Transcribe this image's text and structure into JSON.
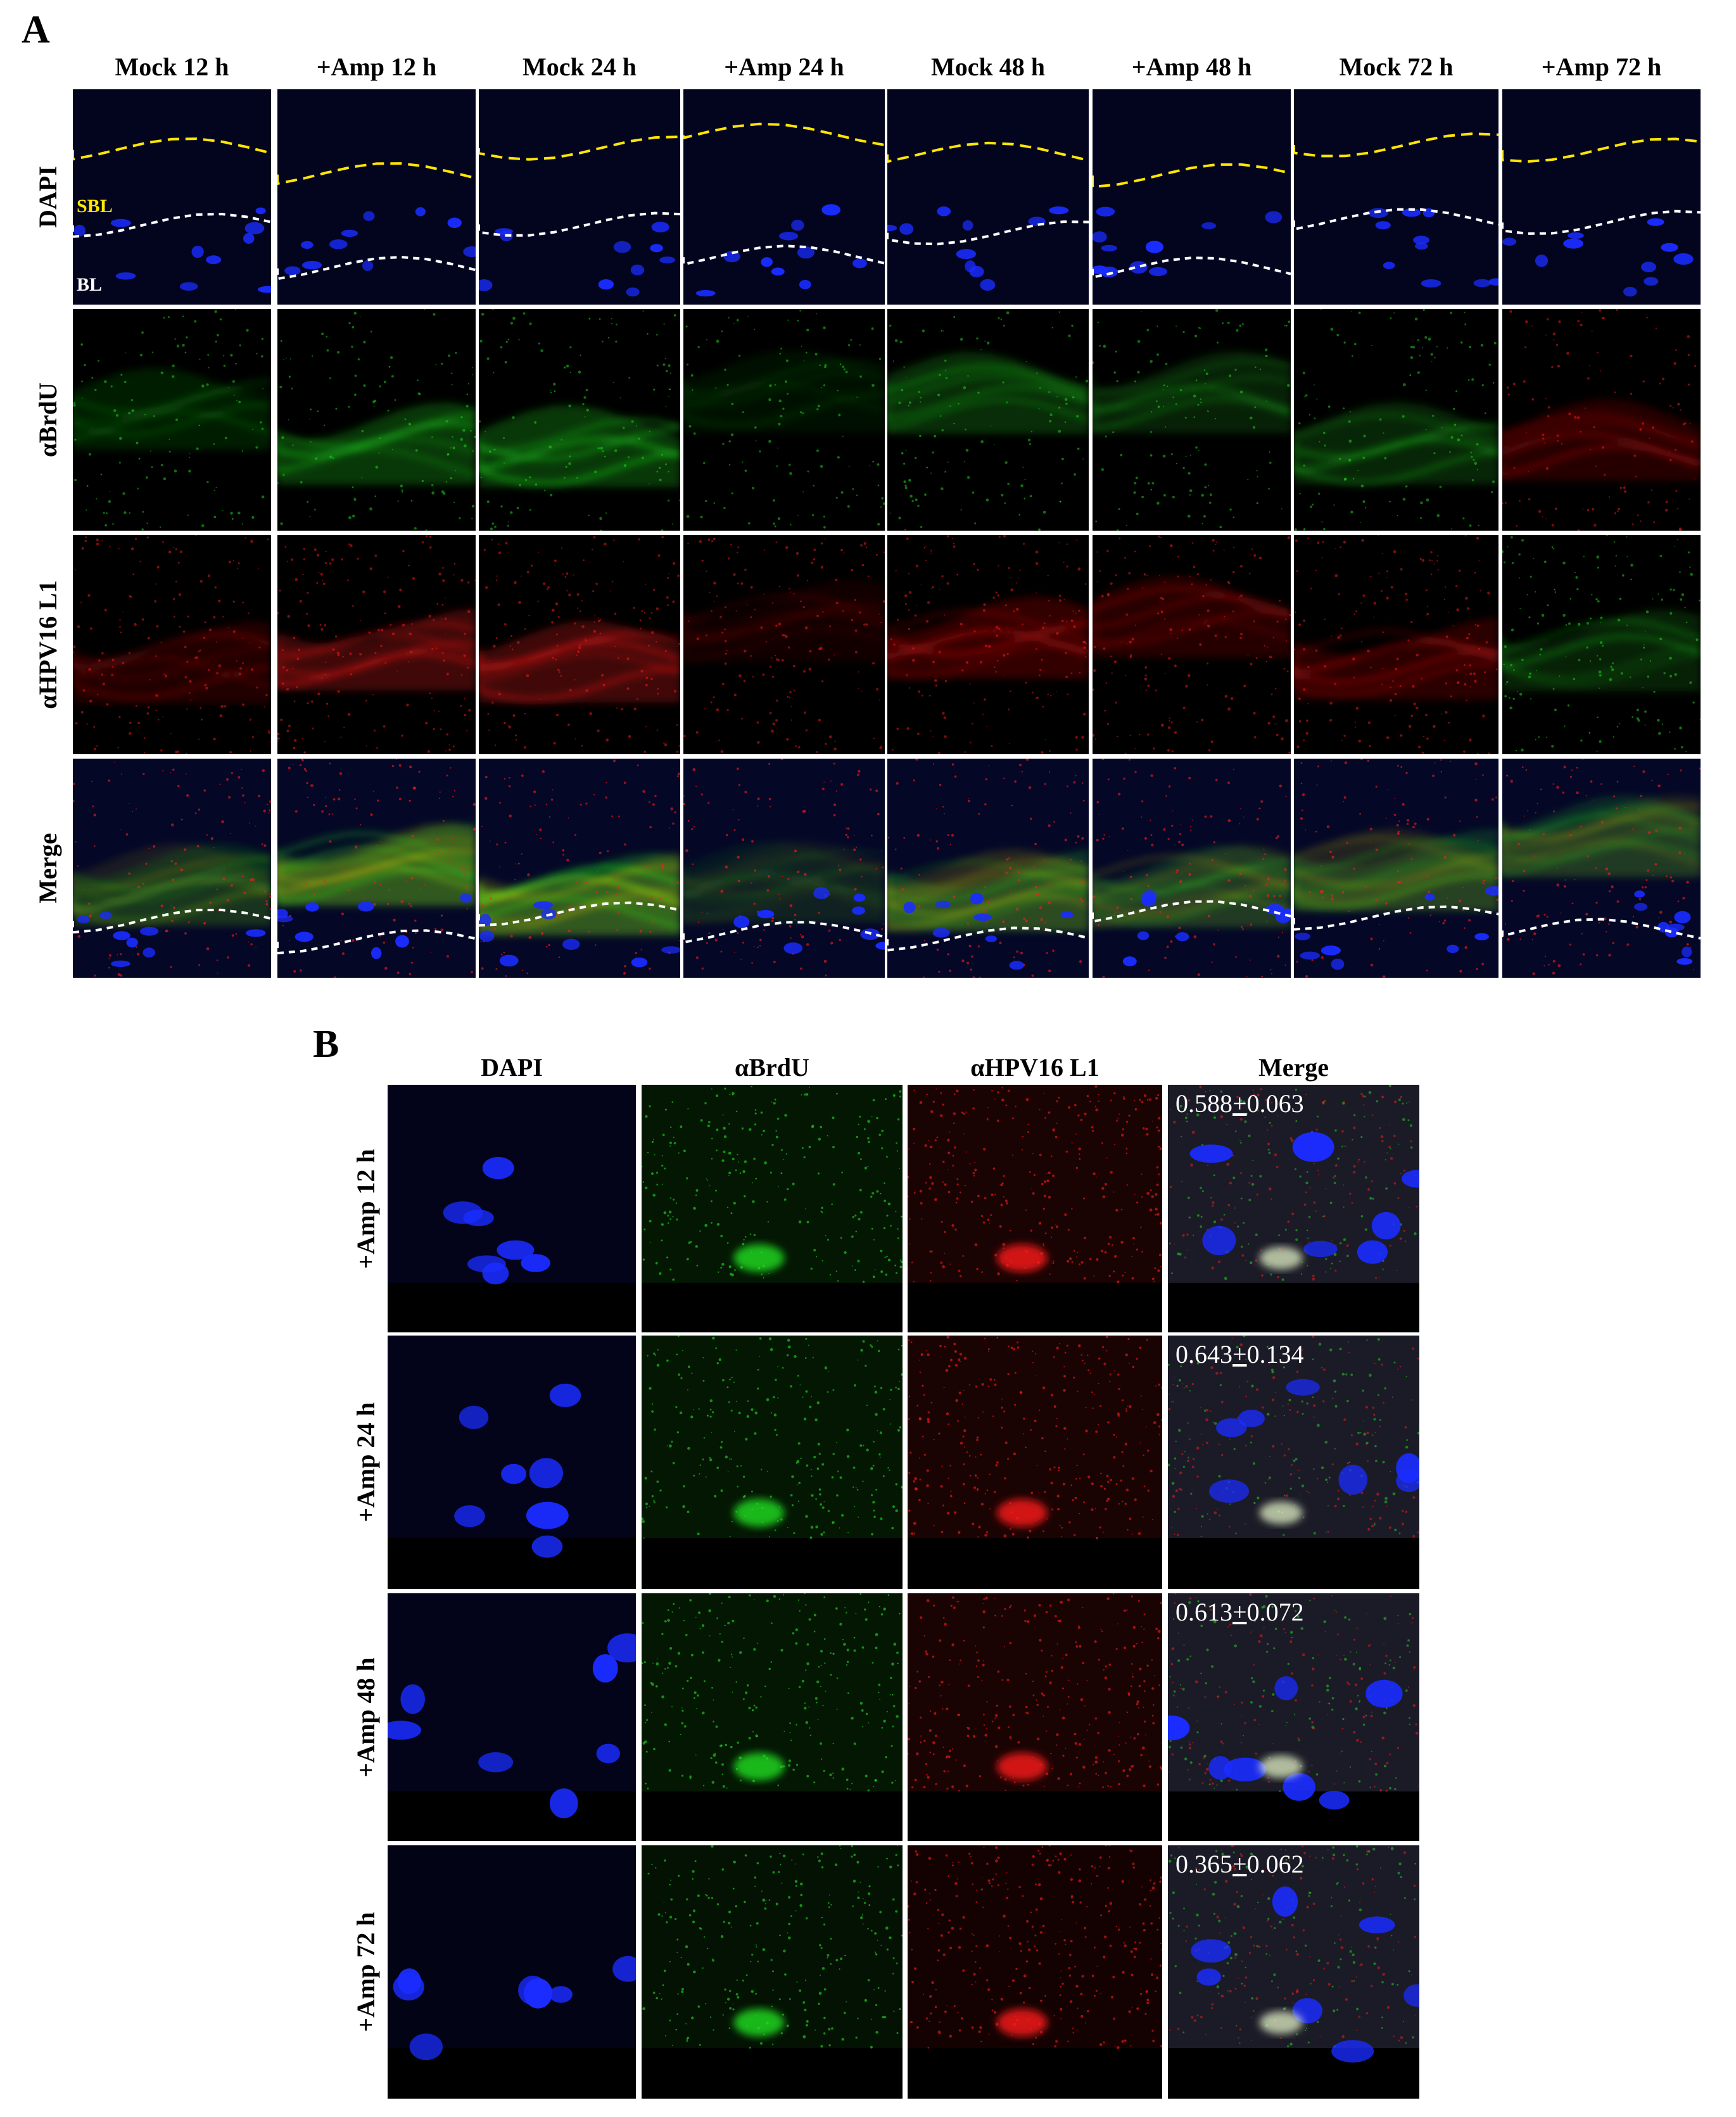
{
  "panel_a": {
    "letter": "A",
    "columns": [
      "Mock 12 h",
      "+Amp 12 h",
      "Mock 24 h",
      "+Amp 24 h",
      "Mock 48 h",
      "+Amp 48 h",
      "Mock 72 h",
      "+Amp 72 h"
    ],
    "rows": [
      "DAPI",
      "αBrdU",
      "αHPV16 L1",
      "Merge"
    ],
    "annotations": {
      "suprabasal": "SBL",
      "basal": "BL"
    }
  },
  "panel_b": {
    "letter": "B",
    "columns": [
      "DAPI",
      "αBrdU",
      "αHPV16 L1",
      "Merge"
    ],
    "rows": [
      {
        "label": "+Amp 12 h",
        "coloc_value": "0.588",
        "coloc_sd": "0.063"
      },
      {
        "label": "+Amp 24 h",
        "coloc_value": "0.643",
        "coloc_sd": "0.134"
      },
      {
        "label": "+Amp 48 h",
        "coloc_value": "0.613",
        "coloc_sd": "0.072"
      },
      {
        "label": "+Amp 72 h",
        "coloc_value": "0.365",
        "coloc_sd": "0.062"
      }
    ],
    "pm_symbol": "+"
  },
  "colors": {
    "dapi": "#1a2cff",
    "brdu": "#22e022",
    "hpv16_l1": "#ff1a1a",
    "suprabasal_line": "#ffe600",
    "basal_line": "#ffffff"
  }
}
